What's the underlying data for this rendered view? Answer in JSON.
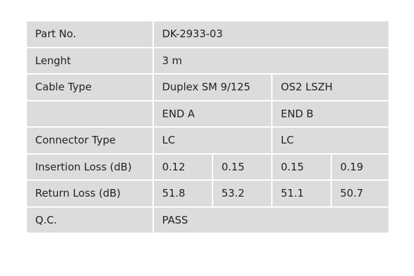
{
  "table": {
    "rows": [
      {
        "label": "Part No.",
        "cells": [
          "DK-2933-03"
        ]
      },
      {
        "label": "Lenght",
        "cells": [
          "3 m"
        ]
      },
      {
        "label": "Cable Type",
        "cells": [
          "Duplex SM 9/125",
          "OS2 LSZH"
        ]
      },
      {
        "cells": [
          "END A",
          "END B"
        ]
      },
      {
        "label": "Connector Type",
        "cells": [
          "LC",
          "LC"
        ]
      },
      {
        "label": "Insertion Loss (dB)",
        "cells": [
          0.12,
          0.15,
          0.15,
          0.19
        ]
      },
      {
        "label": "Return Loss (dB)",
        "cells": [
          51.8,
          53.2,
          51.1,
          50.7
        ]
      },
      {
        "label": "Q.C.",
        "cells": [
          "PASS"
        ]
      }
    ]
  }
}
